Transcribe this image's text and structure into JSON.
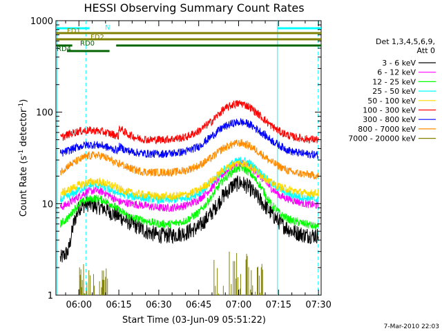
{
  "chart_data": {
    "type": "line",
    "title": "HESSI Observing Summary Count Rates",
    "xlabel": "Start Time (03-Jun-09 05:51:22)",
    "ylabel_main": "Count Rate (s",
    "ylabel_sup1": "-1",
    "ylabel_mid": " detector",
    "ylabel_sup2": "-1",
    "ylabel_end": ")",
    "y_scale": "log",
    "ylim": [
      1,
      1000
    ],
    "xlim_minutes": [
      351.37,
      451.0
    ],
    "x_ticks": [
      {
        "label": "06:00",
        "min": 360
      },
      {
        "label": "06:15",
        "min": 375
      },
      {
        "label": "06:30",
        "min": 390
      },
      {
        "label": "06:45",
        "min": 405
      },
      {
        "label": "07:00",
        "min": 420
      },
      {
        "label": "07:15",
        "min": 435
      },
      {
        "label": "07:30",
        "min": 450
      }
    ],
    "y_ticks": [
      {
        "label": "1",
        "value": 1
      },
      {
        "label": "10",
        "value": 10
      },
      {
        "label": "100",
        "value": 100
      },
      {
        "label": "1000",
        "value": 1000
      }
    ],
    "legend_header_1": "Det 1,3,4,5,6,9,",
    "legend_header_2": "Att 0",
    "series": [
      {
        "name": "3 - 6 keV",
        "color": "#000000",
        "x": [
          353,
          356,
          358,
          360,
          363,
          366,
          369,
          372,
          374,
          376,
          380,
          385,
          390,
          395,
          400,
          405,
          410,
          414,
          418,
          421,
          424,
          428,
          432,
          436,
          440,
          445,
          450
        ],
        "y": [
          2.5,
          3,
          6,
          9,
          10,
          9.5,
          9,
          8,
          7.5,
          7,
          6,
          5,
          4.5,
          4.5,
          4.8,
          5.5,
          8,
          12,
          16,
          17,
          15,
          11,
          8,
          6,
          5,
          4.5,
          4.5
        ]
      },
      {
        "name": "6 - 12 keV",
        "color": "#ff00ff",
        "x": [
          353,
          356,
          360,
          363,
          366,
          369,
          372,
          375,
          380,
          385,
          390,
          395,
          400,
          405,
          410,
          414,
          418,
          421,
          424,
          428,
          432,
          436,
          440,
          445,
          450
        ],
        "y": [
          9,
          10,
          12,
          13.5,
          14,
          13.5,
          12,
          10.5,
          10,
          9.5,
          9,
          9,
          9.5,
          11,
          15,
          21,
          26,
          28,
          26,
          20,
          15,
          12,
          11,
          10,
          9.5
        ]
      },
      {
        "name": "12 - 25 keV",
        "color": "#00ff00",
        "x": [
          353,
          356,
          360,
          363,
          366,
          369,
          372,
          375,
          380,
          385,
          390,
          395,
          400,
          405,
          410,
          414,
          418,
          421,
          424,
          428,
          432,
          436,
          440,
          445,
          450
        ],
        "y": [
          6,
          7,
          10,
          11,
          11.5,
          11,
          10,
          8.5,
          7,
          6.5,
          6,
          6,
          6.5,
          8,
          12,
          18,
          23,
          25,
          22,
          16,
          10,
          7.5,
          6.5,
          6,
          5.5
        ]
      },
      {
        "name": "25 - 50 keV",
        "color": "#00ffff",
        "x": [
          353,
          356,
          360,
          363,
          366,
          369,
          372,
          375,
          380,
          385,
          390,
          395,
          400,
          405,
          410,
          414,
          418,
          421,
          424,
          428,
          432,
          436,
          440,
          445,
          450
        ],
        "y": [
          11,
          12,
          14,
          15.5,
          16,
          15.5,
          14,
          13,
          12,
          11.5,
          11,
          11,
          11.5,
          13,
          17,
          23,
          28,
          30,
          28,
          22,
          17,
          14,
          12.5,
          11.5,
          11
        ]
      },
      {
        "name": "50 - 100 keV",
        "color": "#ffd700",
        "x": [
          353,
          356,
          360,
          363,
          366,
          369,
          372,
          375,
          380,
          385,
          390,
          395,
          400,
          405,
          410,
          414,
          418,
          421,
          424,
          428,
          432,
          436,
          440,
          445,
          450
        ],
        "y": [
          13,
          14,
          16,
          17,
          17.5,
          17,
          16,
          14.5,
          13,
          12.5,
          12,
          12,
          12.5,
          14,
          18,
          23,
          27,
          28,
          26,
          21,
          17,
          15,
          14,
          13,
          13
        ]
      },
      {
        "name": "100 - 300 keV",
        "color": "#ff0000",
        "x": [
          353,
          356,
          360,
          363,
          366,
          369,
          372,
          374.9,
          375.1,
          378,
          382,
          386,
          390,
          395,
          400,
          405,
          410,
          414,
          418,
          421,
          424,
          428,
          432,
          436,
          440,
          445,
          450
        ],
        "y": [
          52,
          57,
          62,
          63,
          63,
          61,
          58,
          55,
          68,
          58,
          52,
          50,
          50,
          51,
          53,
          62,
          80,
          105,
          122,
          125,
          115,
          92,
          72,
          60,
          54,
          51,
          50
        ]
      },
      {
        "name": "300 - 800 keV",
        "color": "#0000ff",
        "x": [
          353,
          356,
          360,
          363,
          366,
          369,
          372,
          374.9,
          375.1,
          378,
          382,
          386,
          390,
          395,
          400,
          405,
          410,
          414,
          418,
          421,
          424,
          428,
          432,
          436,
          440,
          445,
          450
        ],
        "y": [
          35,
          38,
          42,
          44,
          44,
          43,
          40,
          38,
          42,
          38,
          36,
          35,
          35,
          35.5,
          37,
          42,
          55,
          68,
          76,
          78,
          74,
          62,
          50,
          42,
          37,
          35,
          34
        ]
      },
      {
        "name": "800 - 7000 keV",
        "color": "#ff8c00",
        "x": [
          353,
          356,
          360,
          363,
          366,
          369,
          372,
          374.9,
          375.1,
          378,
          382,
          386,
          390,
          395,
          400,
          405,
          410,
          414,
          418,
          421,
          424,
          428,
          432,
          436,
          440,
          445,
          450
        ],
        "y": [
          22,
          26,
          30,
          33,
          34,
          33,
          30,
          26,
          28,
          25,
          23,
          22,
          22,
          22,
          23,
          26,
          32,
          40,
          45,
          46,
          43,
          36,
          29,
          25,
          22,
          21,
          20
        ]
      },
      {
        "name": "7000 - 20000 keV",
        "color": "#808000",
        "x": [],
        "y": []
      }
    ],
    "vertical_markers_solid_min": [
      351.9,
      434.6
    ],
    "vertical_markers_dashed_min": [
      362.6,
      449.9
    ],
    "segment_bars": [
      {
        "label": "N",
        "color": "#00ffff",
        "ranges": [
          [
            351.4,
            364.0
          ],
          [
            434.6,
            451.0
          ]
        ],
        "level": 1
      },
      {
        "label": "FD1",
        "color": "#808000",
        "ranges": [
          [
            351.4,
            451.0
          ]
        ],
        "level": 2
      },
      {
        "label": "FD2",
        "color": "#808000",
        "ranges": [
          [
            351.4,
            451.0
          ]
        ],
        "level": 3
      },
      {
        "label": "RD0",
        "color": "#006400",
        "ranges": [
          [
            351.4,
            357.5
          ],
          [
            374.0,
            451.0
          ]
        ],
        "level": 4
      },
      {
        "label": "RD4",
        "color": "#006400",
        "ranges": [
          [
            355.5,
            371.5
          ]
        ],
        "level": 5
      }
    ],
    "footer_date": "7-Mar-2010 22:03"
  }
}
